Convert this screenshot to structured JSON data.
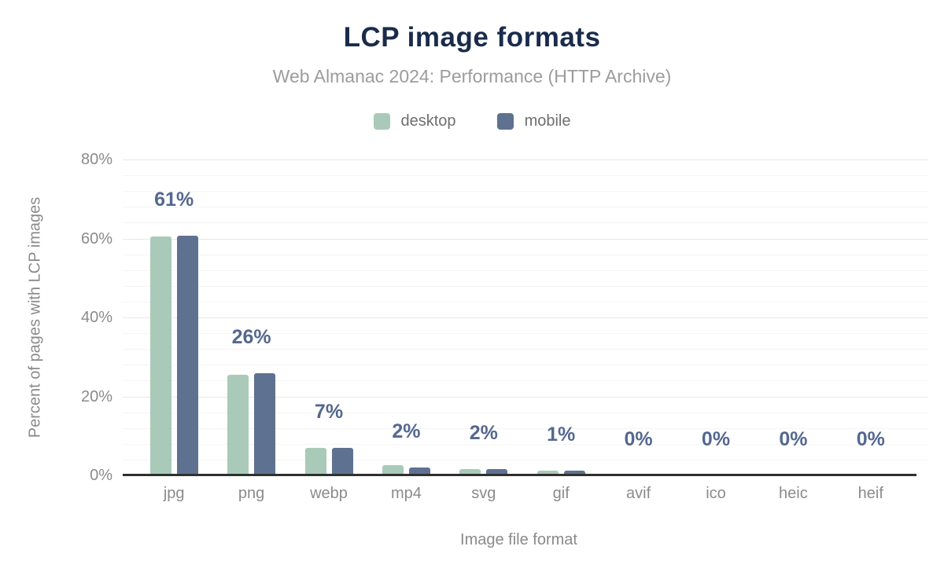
{
  "header": {
    "title": "LCP image formats",
    "subtitle": "Web Almanac 2024: Performance (HTTP Archive)"
  },
  "chart_data": {
    "type": "bar",
    "title": "LCP image formats",
    "subtitle": "Web Almanac 2024: Performance (HTTP Archive)",
    "categories": [
      "jpg",
      "png",
      "webp",
      "mp4",
      "svg",
      "gif",
      "avif",
      "ico",
      "heic",
      "heif"
    ],
    "series": [
      {
        "name": "desktop",
        "color": "#a9cab8",
        "values": [
          60.4,
          25.4,
          7.0,
          2.6,
          1.5,
          1.1,
          0,
          0,
          0,
          0
        ]
      },
      {
        "name": "mobile",
        "color": "#5f7190",
        "values": [
          60.7,
          25.8,
          7.0,
          1.9,
          1.5,
          1.1,
          0,
          0,
          0,
          0
        ]
      }
    ],
    "data_labels": [
      "61%",
      "26%",
      "7%",
      "2%",
      "2%",
      "1%",
      "0%",
      "0%",
      "0%",
      "0%"
    ],
    "xlabel": "Image file format",
    "ylabel": "Percent of pages with LCP images",
    "ylim": [
      0,
      80
    ],
    "y_ticks": [
      0,
      20,
      40,
      60,
      80
    ],
    "y_tick_labels": [
      "0%",
      "20%",
      "40%",
      "60%",
      "80%"
    ],
    "grid": "horizontal; minor gridlines every 4%, major every 20%",
    "legend_position": "top-center"
  },
  "colors": {
    "title": "#1a2b4c",
    "subtitle": "#9c9c9c",
    "desktop_bar": "#a9cab8",
    "mobile_bar": "#5f7190",
    "data_label": "#54688f",
    "axis_text": "#8b8b8b",
    "axis_line": "#303030",
    "grid_minor": "#f5f5f5",
    "grid_major": "#e8e8e8",
    "background": "#ffffff"
  }
}
